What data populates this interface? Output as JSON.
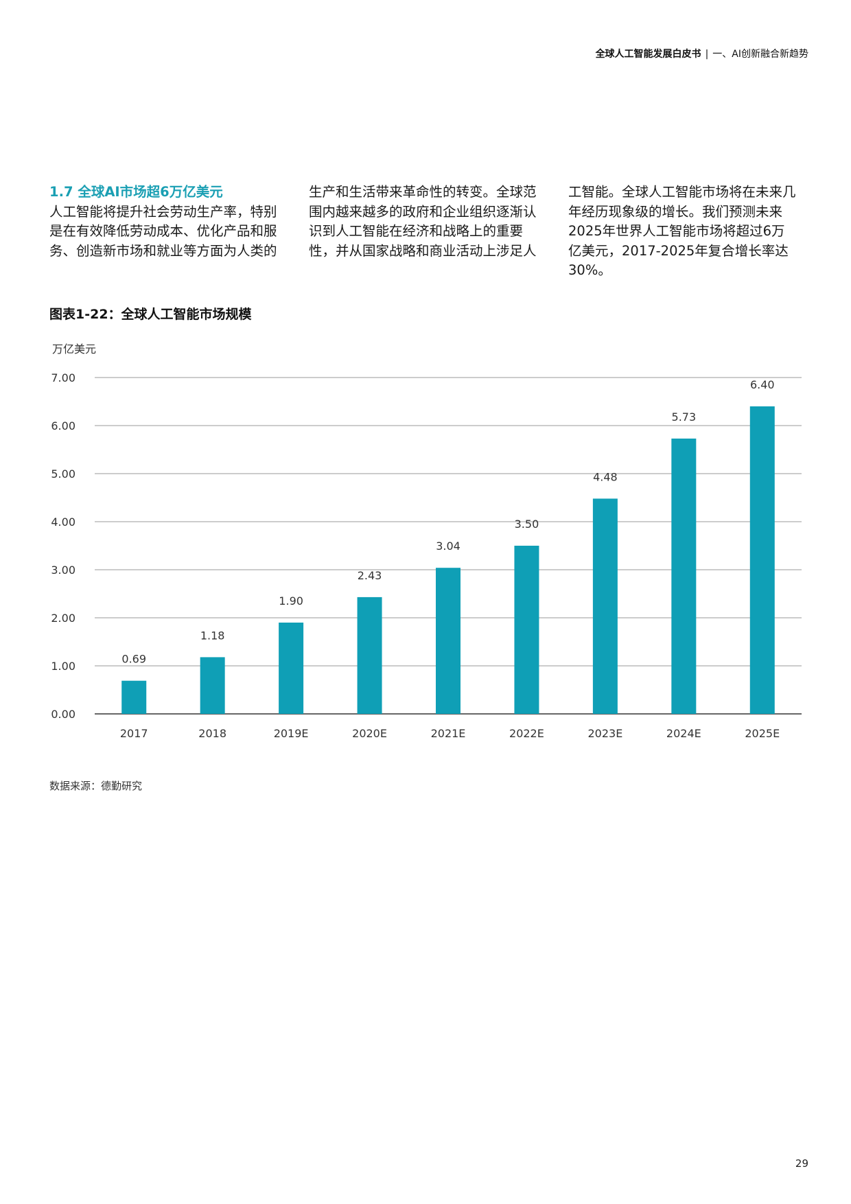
{
  "header": {
    "doc_title": "全球人工智能发展白皮书",
    "separator": "|",
    "section": "一、AI创新融合新趋势"
  },
  "intro": {
    "section_title": "1.7 全球AI市场超6万亿美元",
    "col1_text": "人工智能将提升社会劳动生产率，特别是在有效降低劳动成本、优化产品和服务、创造新市场和就业等方面为人类的",
    "col2_text": "生产和生活带来革命性的转变。全球范围内越来越多的政府和企业组织逐渐认识到人工智能在经济和战略上的重要性，并从国家战略和商业活动上涉足人",
    "col3_text": "工智能。全球人工智能市场将在未来几年经历现象级的增长。我们预测未来2025年世界人工智能市场将超过6万亿美元，2017-2025年复合增长率达30%。"
  },
  "figure": {
    "title": "图表1-22：全球人工智能市场规模",
    "unit_label": "万亿美元",
    "source": "数据来源：德勤研究"
  },
  "page_number": "29",
  "colors": {
    "bar": "#0f9fb6",
    "accent": "#1a9fb3",
    "grid": "#9a9a9a",
    "axis": "#333333"
  },
  "chart_data": {
    "type": "bar",
    "title": "图表1-22：全球人工智能市场规模",
    "ylabel": "万亿美元",
    "xlabel": "",
    "categories": [
      "2017",
      "2018",
      "2019E",
      "2020E",
      "2021E",
      "2022E",
      "2023E",
      "2024E",
      "2025E"
    ],
    "values": [
      0.69,
      1.18,
      1.9,
      2.43,
      3.04,
      3.5,
      4.48,
      5.73,
      6.4
    ],
    "value_labels": [
      "0.69",
      "1.18",
      "1.90",
      "2.43",
      "3.04",
      "3.50",
      "4.48",
      "5.73",
      "6.40"
    ],
    "yticks": [
      "0.00",
      "1.00",
      "2.00",
      "3.00",
      "4.00",
      "5.00",
      "6.00",
      "7.00"
    ],
    "ylim": [
      0,
      7
    ],
    "grid": true,
    "legend": "none"
  }
}
